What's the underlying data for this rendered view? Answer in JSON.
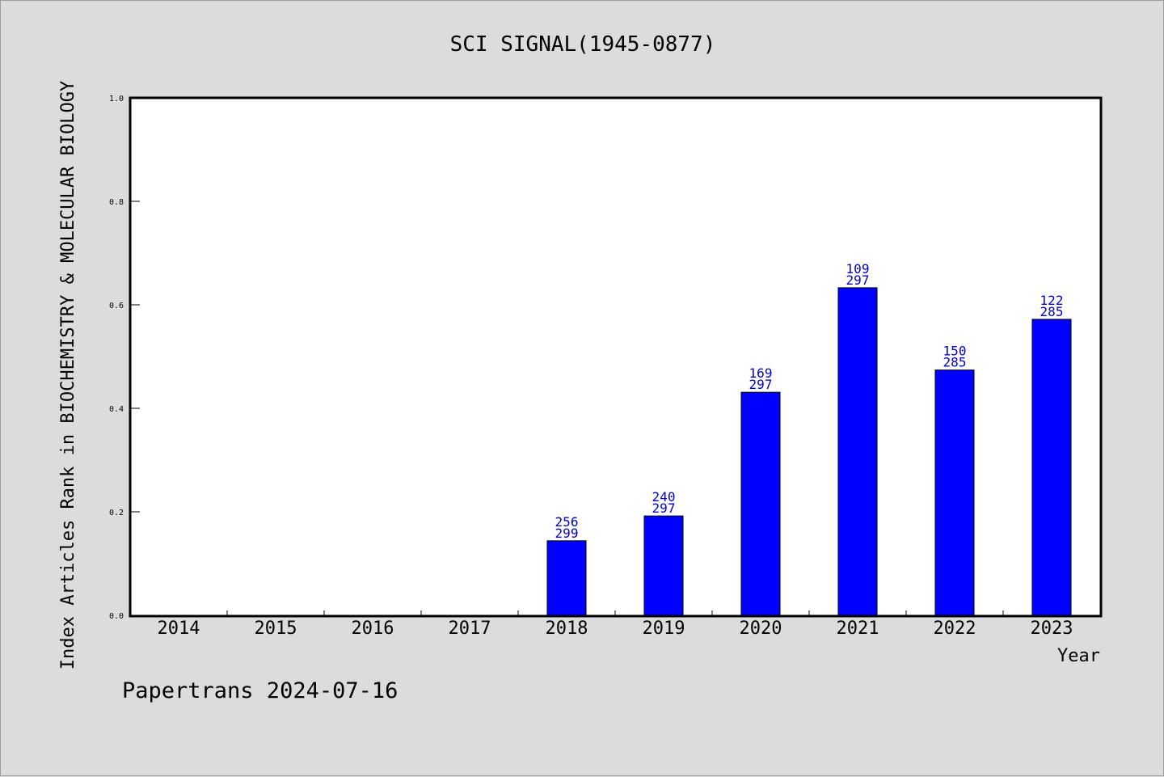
{
  "chart_data": {
    "type": "bar",
    "title": "SCI SIGNAL(1945-0877)",
    "xlabel": "Year",
    "ylabel": "Index Articles Rank in BIOCHEMISTRY & MOLECULAR BIOLOGY",
    "categories": [
      "2014",
      "2015",
      "2016",
      "2017",
      "2018",
      "2019",
      "2020",
      "2021",
      "2022",
      "2023"
    ],
    "values": [
      null,
      null,
      null,
      null,
      0.144,
      0.192,
      0.431,
      0.633,
      0.474,
      0.572
    ],
    "ranks": [
      null,
      null,
      null,
      null,
      "256",
      "240",
      "169",
      "109",
      "150",
      "122"
    ],
    "totals": [
      null,
      null,
      null,
      null,
      "299",
      "297",
      "297",
      "297",
      "285",
      "285"
    ],
    "ylim": [
      0,
      1.0
    ],
    "yticks": [
      "0.0",
      "0.2",
      "0.4",
      "0.6",
      "0.8",
      "1.0"
    ],
    "bar_color": "#0000ff",
    "label_color": "#0000cc",
    "grid": false,
    "legend": "none"
  },
  "footer": "Papertrans 2024-07-16"
}
